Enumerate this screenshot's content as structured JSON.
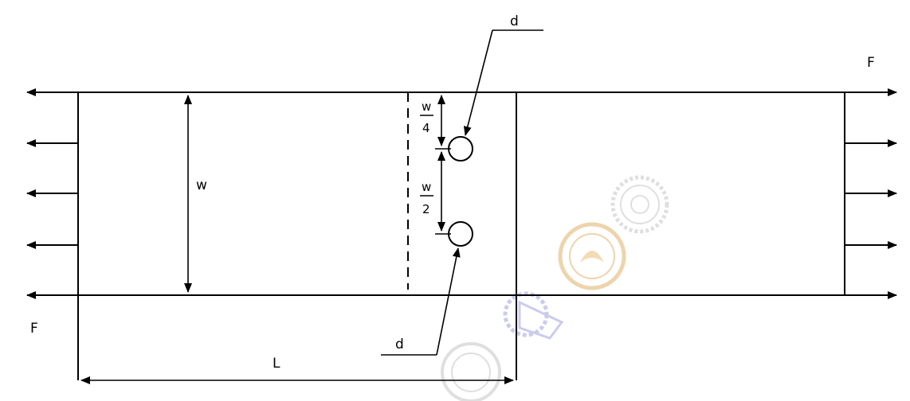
{
  "labels": {
    "force_right": "F",
    "force_left": "F",
    "width": "w",
    "length": "L",
    "hole_diameter_top": "d",
    "hole_diameter_bottom": "d",
    "quarter_num": "w",
    "quarter_den": "4",
    "half_num": "w",
    "half_den": "2"
  },
  "colors": {
    "line": "#000000",
    "watermark_gold": "#d9a24a",
    "watermark_blue": "#8d8fd6",
    "watermark_gray": "#b9b9b9"
  },
  "watermarks": [
    "emblem-gear",
    "emblem-orange-seal",
    "emblem-tech",
    "emblem-round-seal"
  ]
}
